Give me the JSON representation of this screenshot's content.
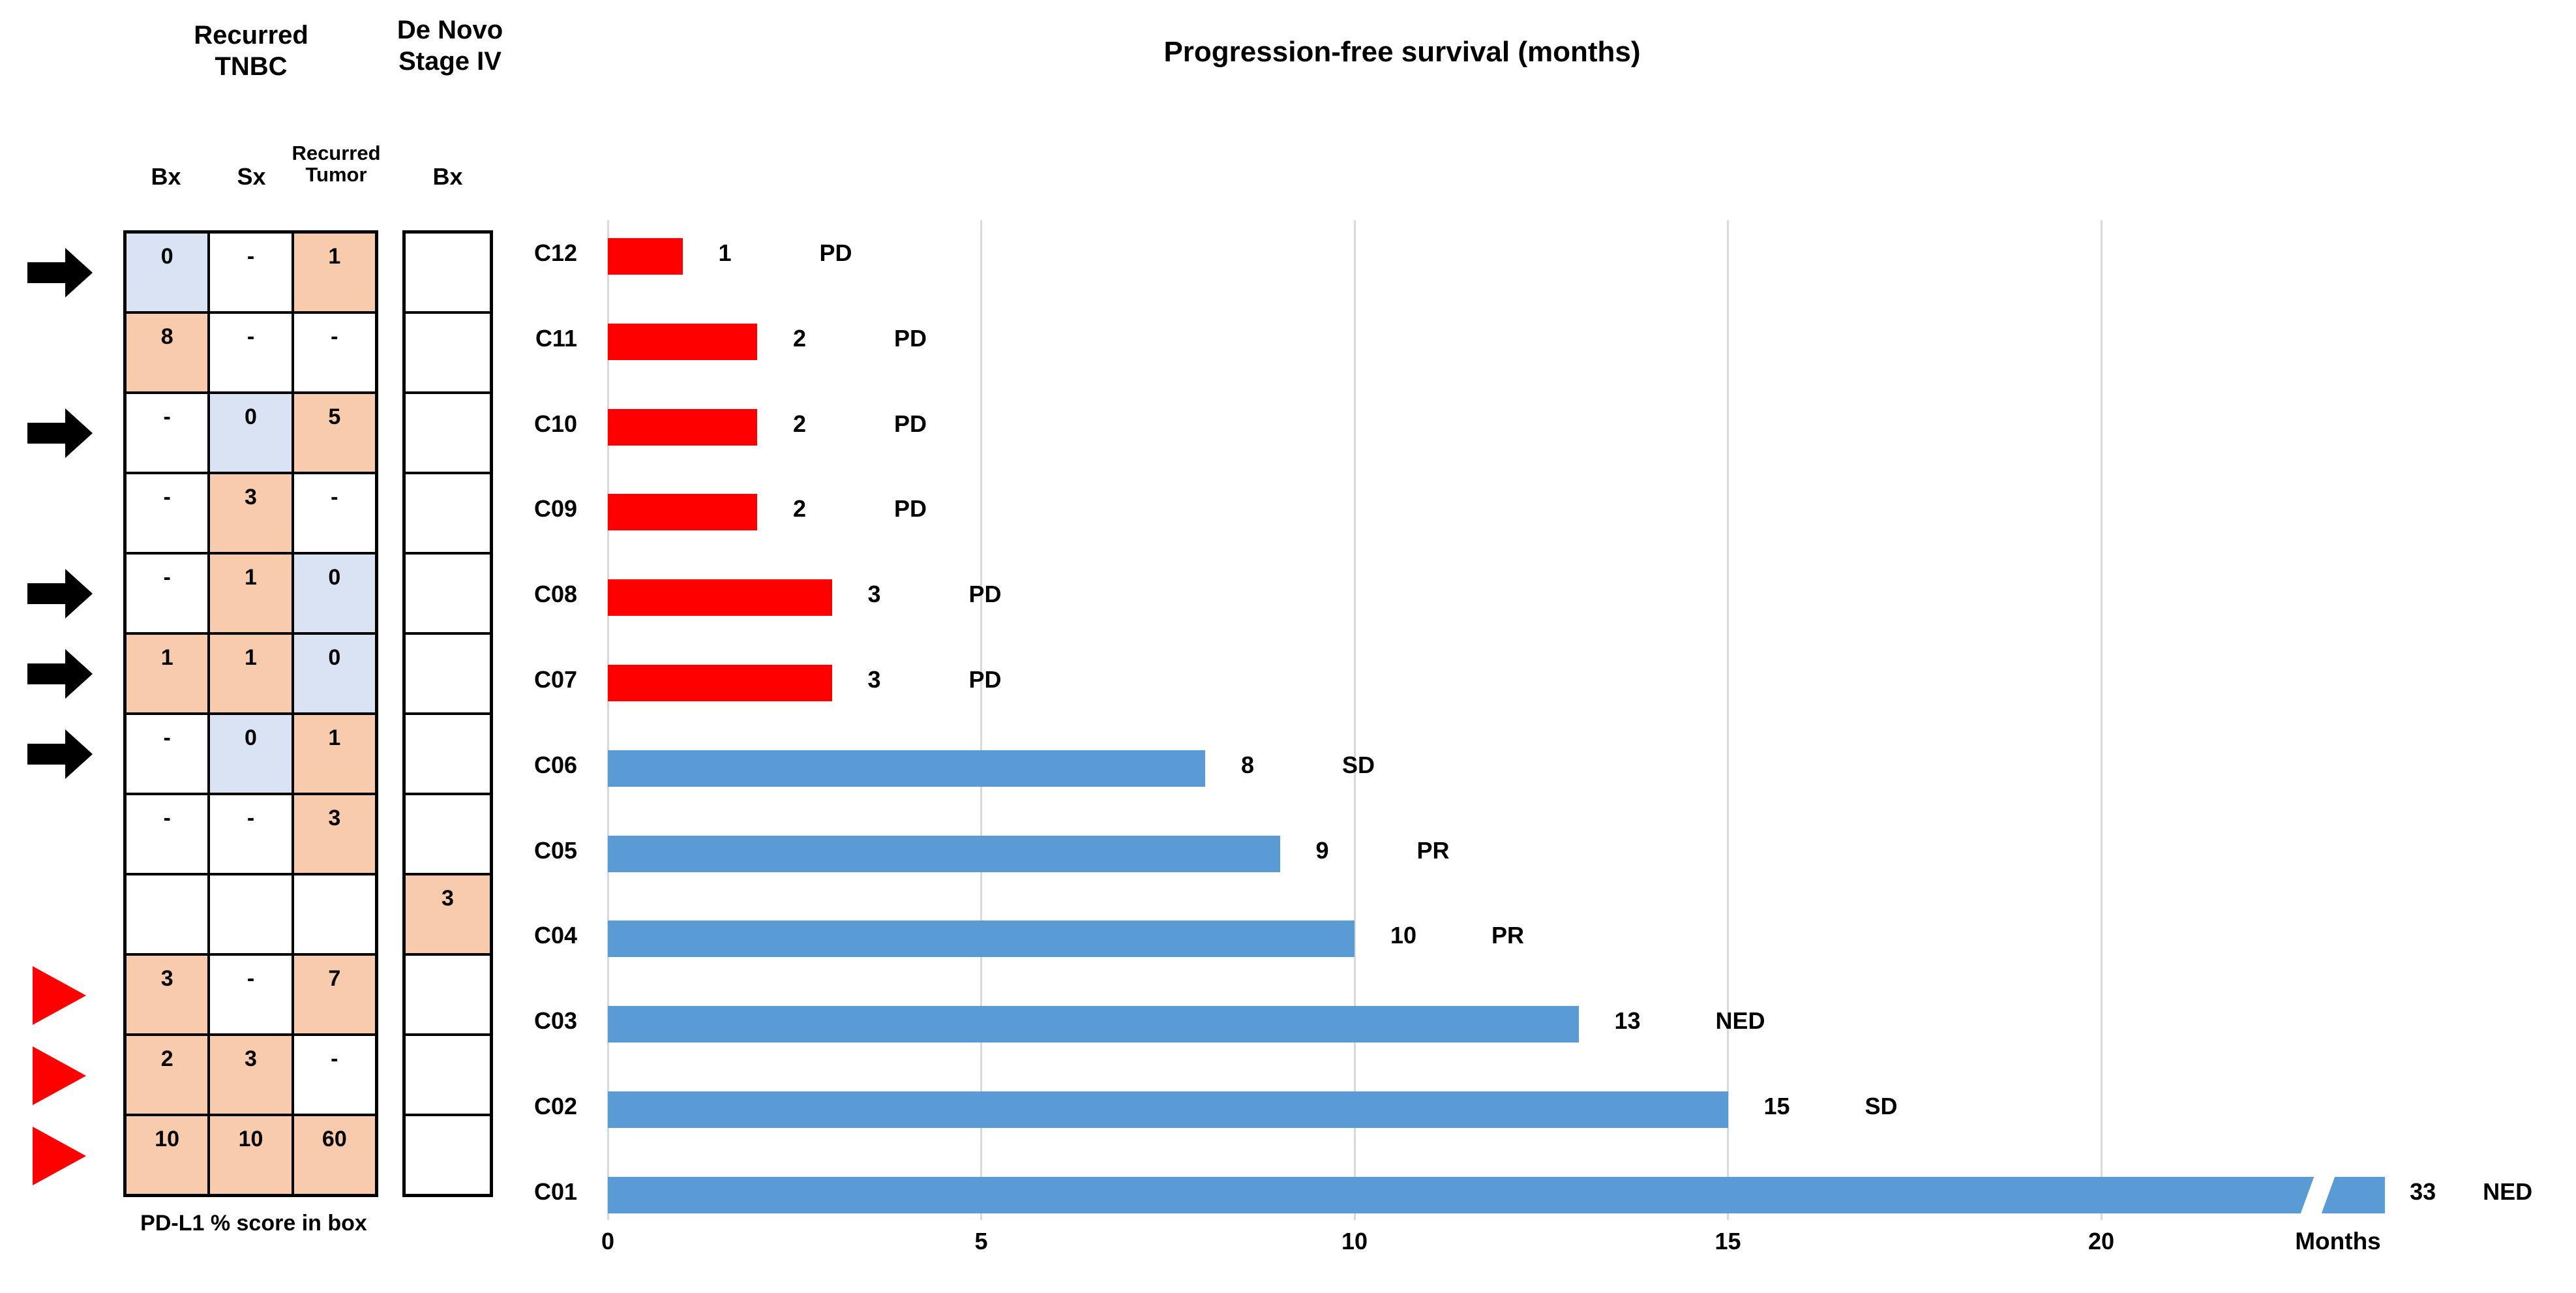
{
  "table": {
    "group_header_recurred": "Recurred TNBC",
    "group_header_denovo": "De Novo Stage IV",
    "col_headers": [
      "Bx",
      "Sx",
      "Recurred Tumor"
    ],
    "denovo_col_header": "Bx",
    "footer": "PD-L1 % score in box",
    "cell_colors": {
      "pos": "#F8CBAD",
      "zero": "#DAE3F3",
      "plain": "#FFFFFF"
    },
    "marker_colors": {
      "black-arrow": "#000000",
      "red-triangle": "#FF0000"
    },
    "rows": [
      {
        "patient": "C12",
        "marker": "black-arrow",
        "cells": [
          [
            "0",
            "zero"
          ],
          [
            "-",
            "plain"
          ],
          [
            "1",
            "pos"
          ]
        ],
        "denovo": [
          "",
          "plain"
        ]
      },
      {
        "patient": "C11",
        "marker": "none",
        "cells": [
          [
            "8",
            "pos"
          ],
          [
            "-",
            "plain"
          ],
          [
            "-",
            "plain"
          ]
        ],
        "denovo": [
          "",
          "plain"
        ]
      },
      {
        "patient": "C10",
        "marker": "black-arrow",
        "cells": [
          [
            "-",
            "plain"
          ],
          [
            "0",
            "zero"
          ],
          [
            "5",
            "pos"
          ]
        ],
        "denovo": [
          "",
          "plain"
        ]
      },
      {
        "patient": "C09",
        "marker": "none",
        "cells": [
          [
            "-",
            "plain"
          ],
          [
            "3",
            "pos"
          ],
          [
            "-",
            "plain"
          ]
        ],
        "denovo": [
          "",
          "plain"
        ]
      },
      {
        "patient": "C08",
        "marker": "black-arrow",
        "cells": [
          [
            "-",
            "plain"
          ],
          [
            "1",
            "pos"
          ],
          [
            "0",
            "zero"
          ]
        ],
        "denovo": [
          "",
          "plain"
        ]
      },
      {
        "patient": "C07",
        "marker": "black-arrow",
        "cells": [
          [
            "1",
            "pos"
          ],
          [
            "1",
            "pos"
          ],
          [
            "0",
            "zero"
          ]
        ],
        "denovo": [
          "",
          "plain"
        ]
      },
      {
        "patient": "C06",
        "marker": "black-arrow",
        "cells": [
          [
            "-",
            "plain"
          ],
          [
            "0",
            "zero"
          ],
          [
            "1",
            "pos"
          ]
        ],
        "denovo": [
          "",
          "plain"
        ]
      },
      {
        "patient": "C05",
        "marker": "none",
        "cells": [
          [
            "-",
            "plain"
          ],
          [
            "-",
            "plain"
          ],
          [
            "3",
            "pos"
          ]
        ],
        "denovo": [
          "",
          "plain"
        ]
      },
      {
        "patient": "C04",
        "marker": "none",
        "cells": [
          [
            "",
            "plain"
          ],
          [
            "",
            "plain"
          ],
          [
            "",
            "plain"
          ]
        ],
        "denovo": [
          "3",
          "pos"
        ]
      },
      {
        "patient": "C03",
        "marker": "red-triangle",
        "cells": [
          [
            "3",
            "pos"
          ],
          [
            "-",
            "plain"
          ],
          [
            "7",
            "pos"
          ]
        ],
        "denovo": [
          "",
          "plain"
        ]
      },
      {
        "patient": "C02",
        "marker": "red-triangle",
        "cells": [
          [
            "2",
            "pos"
          ],
          [
            "3",
            "pos"
          ],
          [
            "-",
            "plain"
          ]
        ],
        "denovo": [
          "",
          "plain"
        ]
      },
      {
        "patient": "C01",
        "marker": "red-triangle",
        "cells": [
          [
            "10",
            "pos"
          ],
          [
            "10",
            "pos"
          ],
          [
            "60",
            "pos"
          ]
        ],
        "denovo": [
          "",
          "plain"
        ]
      }
    ]
  },
  "chart_data": {
    "type": "bar",
    "orientation": "horizontal",
    "title": "Progression-free survival (months)",
    "categories": [
      "C12",
      "C11",
      "C10",
      "C09",
      "C08",
      "C07",
      "C06",
      "C05",
      "C04",
      "C03",
      "C02",
      "C01"
    ],
    "values": [
      1,
      2,
      2,
      2,
      3,
      3,
      8,
      9,
      10,
      13,
      15,
      33
    ],
    "responses": [
      "PD",
      "PD",
      "PD",
      "PD",
      "PD",
      "PD",
      "SD",
      "PR",
      "PR",
      "NED",
      "SD",
      "NED"
    ],
    "bar_colors": [
      "#FF0000",
      "#FF0000",
      "#FF0000",
      "#FF0000",
      "#FF0000",
      "#FF0000",
      "#5B9BD5",
      "#5B9BD5",
      "#5B9BD5",
      "#5B9BD5",
      "#5B9BD5",
      "#5B9BD5"
    ],
    "series_colors": {
      "PD": "#FF0000",
      "non_PD": "#5B9BD5"
    },
    "xlabel": "Months",
    "xticks": [
      0,
      5,
      10,
      15,
      20
    ],
    "xlim": [
      0,
      24
    ],
    "gridlines": true,
    "gridline_color": "#D9D9D9",
    "axis_break": {
      "category": "C01",
      "true_value": 33,
      "drawn_value": 23.8,
      "break_position": 22.9
    }
  }
}
